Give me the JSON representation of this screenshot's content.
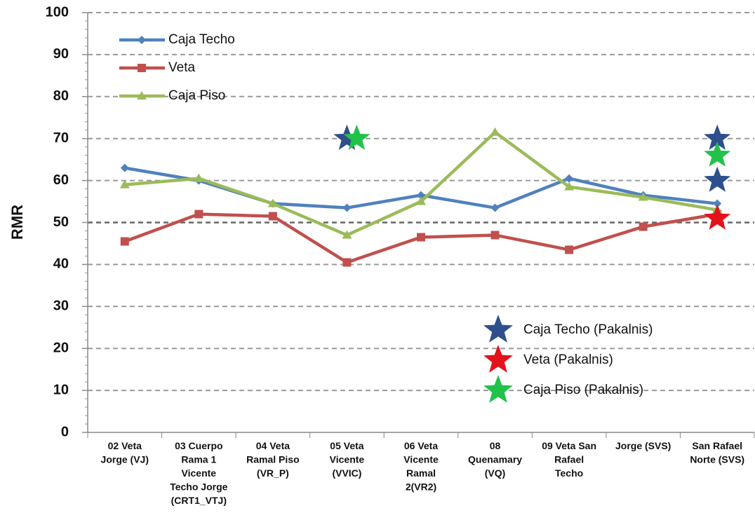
{
  "chart_data": {
    "type": "line",
    "ylabel": "RMR",
    "categories": [
      "02 Veta Jorge (VJ)",
      "03 Cuerpo Rama 1 Vicente Techo Jorge (CRT1_VTJ)",
      "04 Veta Ramal Piso (VR_P)",
      "05 Veta Vicente (VVIC)",
      "06 Veta Vicente Ramal 2(VR2)",
      "08 Quenamary (VQ)",
      "09 Veta San Rafael Techo",
      "Jorge (SVS)",
      "San Rafael Norte (SVS)"
    ],
    "series": [
      {
        "name": "Caja Techo",
        "color": "#4f81bd",
        "marker": "diamond",
        "values": [
          63,
          60,
          54.5,
          53.5,
          56.5,
          53.5,
          60.5,
          56.5,
          54.5
        ]
      },
      {
        "name": "Veta",
        "color": "#c0504d",
        "marker": "square",
        "values": [
          45.5,
          52,
          51.5,
          40.5,
          46.5,
          47,
          43.5,
          49,
          52
        ]
      },
      {
        "name": "Caja Piso",
        "color": "#9bbb59",
        "marker": "triangle",
        "values": [
          59,
          60.5,
          54.5,
          47,
          55,
          71.5,
          58.5,
          56,
          53
        ]
      },
      {
        "name": "Caja Techo (Pakalnis)",
        "color": "#2e4f8c",
        "marker": "star",
        "values": [
          null,
          null,
          null,
          [
            70
          ],
          null,
          null,
          null,
          null,
          [
            70,
            60
          ]
        ]
      },
      {
        "name": "Veta (Pakalnis)",
        "color": "#e3121b",
        "marker": "star",
        "values": [
          null,
          null,
          null,
          null,
          null,
          null,
          null,
          null,
          [
            51
          ]
        ]
      },
      {
        "name": "Caja Piso (Pakalnis)",
        "color": "#22c24a",
        "marker": "star",
        "values": [
          null,
          null,
          null,
          [
            70
          ],
          null,
          null,
          null,
          null,
          [
            66
          ]
        ]
      }
    ],
    "ylim": [
      0,
      100
    ],
    "yticks": [
      0,
      10,
      20,
      30,
      40,
      50,
      60,
      70,
      80,
      90,
      100
    ],
    "grid": true
  }
}
